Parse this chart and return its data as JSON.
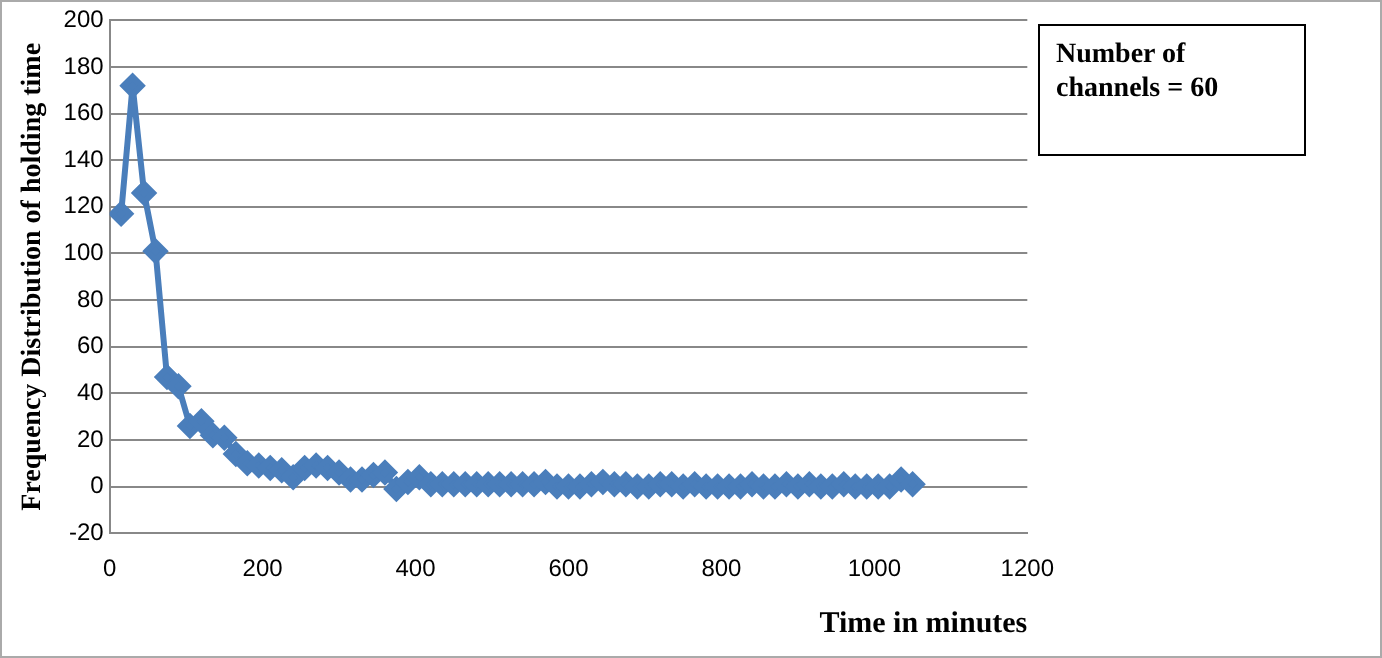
{
  "chart_data": {
    "type": "line",
    "xlabel": "Time in minutes",
    "ylabel": "Frequency Distribution of holding time",
    "annotations": [
      "Number of channels = 60"
    ],
    "x": [
      15,
      30,
      45,
      60,
      75,
      90,
      105,
      120,
      135,
      150,
      165,
      180,
      195,
      210,
      225,
      240,
      255,
      270,
      285,
      300,
      315,
      330,
      345,
      360,
      375,
      390,
      405,
      420,
      435,
      450,
      465,
      480,
      495,
      510,
      525,
      540,
      555,
      570,
      585,
      600,
      615,
      630,
      645,
      660,
      675,
      690,
      705,
      720,
      735,
      750,
      765,
      780,
      795,
      810,
      825,
      840,
      855,
      870,
      885,
      900,
      915,
      930,
      945,
      960,
      975,
      990,
      1005,
      1020,
      1035,
      1050
    ],
    "series": [
      {
        "color": "#4a7ebb",
        "values": [
          117,
          172,
          126,
          101,
          47,
          43,
          26,
          28,
          22,
          21,
          14,
          10,
          9,
          8,
          7,
          4,
          8,
          9,
          8,
          6,
          3,
          3,
          5,
          6,
          -1,
          2,
          4,
          1,
          1,
          1,
          1,
          1,
          1,
          1,
          1,
          1,
          1,
          2,
          0,
          0,
          0,
          1,
          2,
          1,
          1,
          0,
          0,
          1,
          1,
          0,
          1,
          0,
          0,
          0,
          0,
          1,
          0,
          0,
          1,
          0,
          1,
          0,
          0,
          1,
          0,
          0,
          0,
          0,
          3,
          1
        ]
      }
    ],
    "xlim": [
      0,
      1200
    ],
    "xticks": [
      0,
      200,
      400,
      600,
      800,
      1000,
      1200
    ],
    "ylim": [
      -20,
      200
    ],
    "yticks": [
      -20,
      0,
      20,
      40,
      60,
      80,
      100,
      120,
      140,
      160,
      180,
      200
    ],
    "grid": "y",
    "legend": false,
    "marker": "diamond",
    "line_style": "solid"
  }
}
